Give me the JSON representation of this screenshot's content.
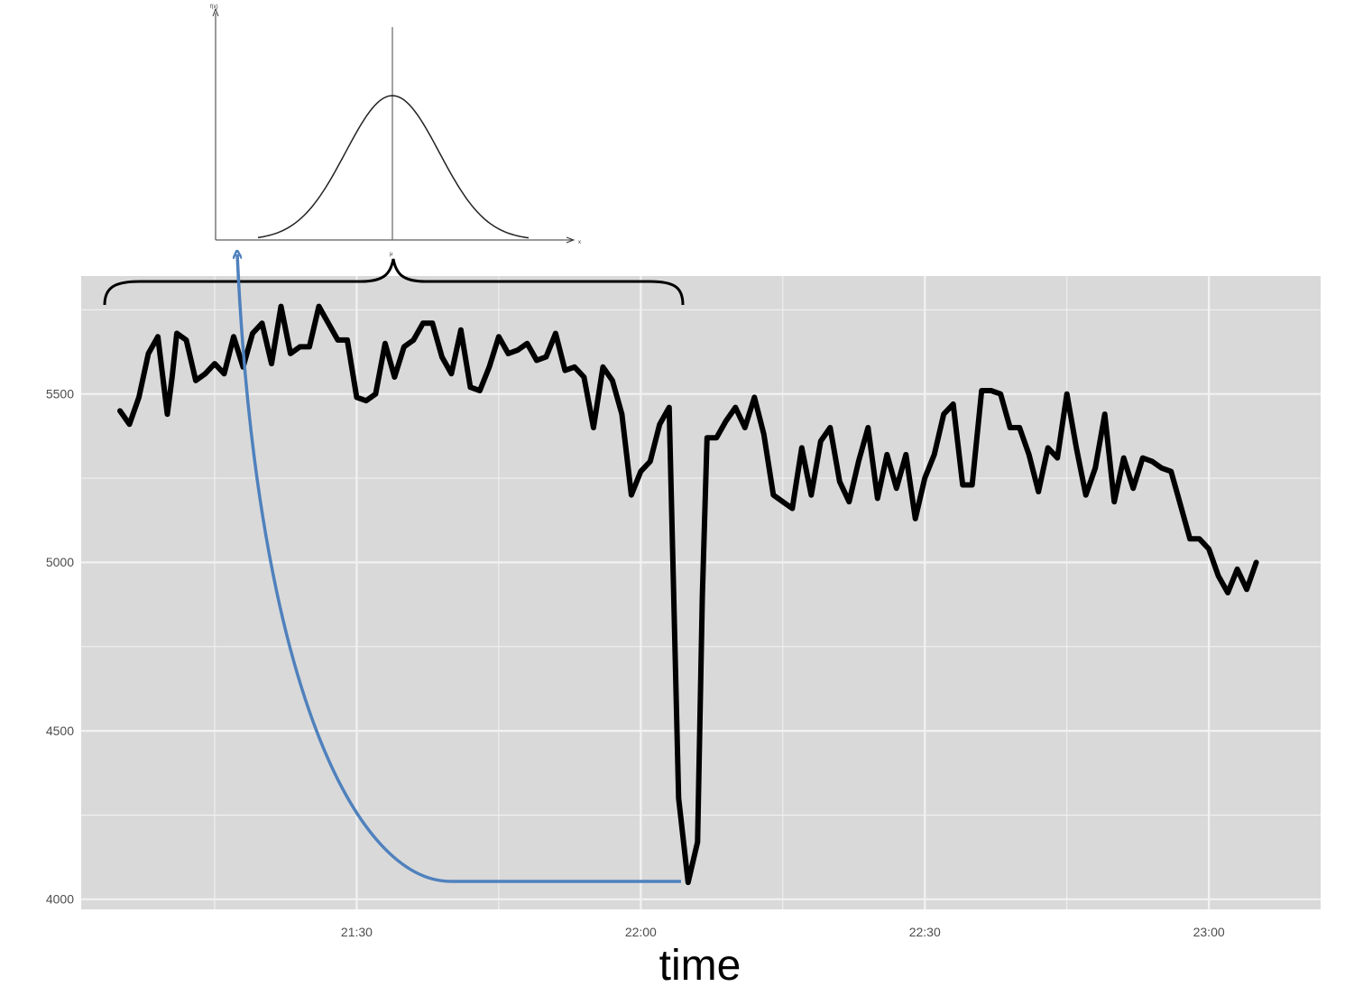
{
  "chart_data": {
    "type": "line",
    "xlabel": "time",
    "ylabel": "",
    "x_tick_labels": [
      "21:30",
      "22:00",
      "22:30",
      "23:00"
    ],
    "y_tick_labels": [
      "4000",
      "4500",
      "5000",
      "5500"
    ],
    "y_ticks": [
      4000,
      4500,
      5000,
      5500
    ],
    "x_tick_times_min": [
      1290,
      1320,
      1350,
      1380
    ],
    "xlim_min": [
      1260.9,
      1391.8
    ],
    "ylim": [
      3970,
      5850
    ],
    "grid": true,
    "background": "#d9d9d9",
    "series": [
      {
        "color": "#000000",
        "x_min": [
          1265.0,
          1266.0,
          1267.0,
          1268.0,
          1269.0,
          1270.0,
          1270.5,
          1271.0,
          1272.0,
          1273.0,
          1274.0,
          1275.0,
          1276.0,
          1277.0,
          1278.0,
          1279.0,
          1280.0,
          1281.0,
          1282.0,
          1283.0,
          1284.0,
          1285.0,
          1286.0,
          1287.0,
          1288.0,
          1289.0,
          1290.0,
          1291.0,
          1292.0,
          1293.0,
          1294.0,
          1295.0,
          1296.0,
          1297.0,
          1298.0,
          1299.0,
          1300.0,
          1301.0,
          1302.0,
          1303.0,
          1304.0,
          1305.0,
          1306.0,
          1307.0,
          1308.0,
          1309.0,
          1310.0,
          1311.0,
          1312.0,
          1313.0,
          1314.0,
          1315.0,
          1316.0,
          1317.0,
          1318.0,
          1319.0,
          1320.0,
          1321.0,
          1322.0,
          1323.0,
          1324.0,
          1325.0,
          1326.0,
          1326.5,
          1327.0,
          1328.0,
          1329.0,
          1330.0,
          1331.0,
          1332.0,
          1333.0,
          1334.0,
          1335.0,
          1336.0,
          1337.0,
          1338.0,
          1339.0,
          1340.0,
          1341.0,
          1342.0,
          1343.0,
          1344.0,
          1345.0,
          1346.0,
          1347.0,
          1348.0,
          1349.0,
          1350.0,
          1351.0,
          1352.0,
          1353.0,
          1354.0,
          1355.0,
          1356.0,
          1357.0,
          1358.0,
          1359.0,
          1360.0,
          1361.0,
          1362.0,
          1363.0,
          1364.0,
          1365.0,
          1366.0,
          1367.0,
          1368.0,
          1369.0,
          1370.0,
          1371.0,
          1372.0,
          1373.0,
          1374.0,
          1375.0,
          1376.0,
          1377.0,
          1378.0,
          1379.0,
          1380.0,
          1381.0,
          1382.0,
          1383.0,
          1384.0,
          1385.0
        ],
        "y": [
          5450,
          5410,
          5490,
          5620,
          5670,
          5440,
          5550,
          5680,
          5660,
          5540,
          5560,
          5590,
          5560,
          5670,
          5580,
          5680,
          5710,
          5590,
          5760,
          5620,
          5640,
          5640,
          5760,
          5710,
          5660,
          5660,
          5490,
          5480,
          5500,
          5650,
          5550,
          5640,
          5660,
          5710,
          5710,
          5610,
          5560,
          5690,
          5520,
          5510,
          5580,
          5670,
          5620,
          5630,
          5650,
          5600,
          5610,
          5680,
          5570,
          5580,
          5550,
          5400,
          5580,
          5540,
          5440,
          5200,
          5270,
          5300,
          5410,
          5460,
          4300,
          4050,
          4170,
          4900,
          5370,
          5370,
          5420,
          5460,
          5400,
          5490,
          5380,
          5200,
          5180,
          5160,
          5340,
          5200,
          5360,
          5400,
          5240,
          5180,
          5300,
          5400,
          5190,
          5320,
          5220,
          5320,
          5130,
          5250,
          5320,
          5440,
          5470,
          5230,
          5230,
          5510,
          5510,
          5500,
          5400,
          5400,
          5320,
          5210,
          5340,
          5310,
          5500,
          5340,
          5200,
          5280,
          5440,
          5180,
          5310,
          5220,
          5310,
          5300,
          5280,
          5270,
          5170,
          5070,
          5070,
          5040,
          4960,
          4910,
          4980,
          4920,
          5000
        ]
      }
    ]
  },
  "annotation": {
    "arrow_color": "#4f81bd",
    "brace_color": "#000000",
    "inset": {
      "type": "normal-distribution",
      "y_axis_label": "f(x)",
      "x_axis_label": "x",
      "mean_label": "μ"
    }
  }
}
